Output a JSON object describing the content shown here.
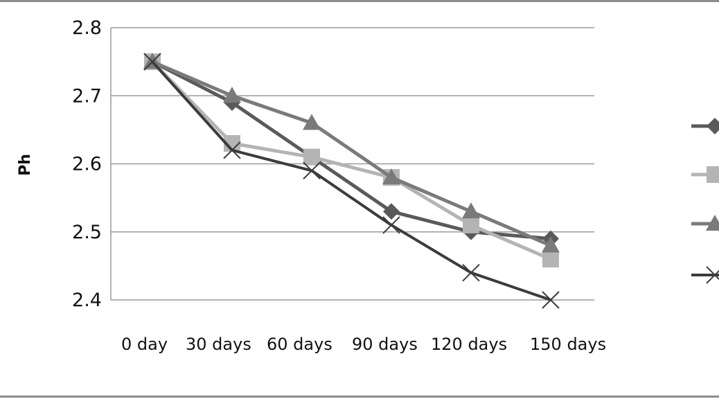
{
  "chart_data": {
    "type": "line",
    "title": "",
    "xlabel": "",
    "ylabel": "Ph",
    "categories": [
      "0 day",
      "30 days",
      "60 days",
      "90 days",
      "120 days",
      "150 days"
    ],
    "ylim": [
      2.4,
      2.8
    ],
    "yticks": [
      "2.8",
      "2.7",
      "2.6",
      "2.5",
      "2.4"
    ],
    "grid": true,
    "legend_position": "right",
    "series": [
      {
        "values": [
          2.75,
          2.69,
          2.61,
          2.53,
          2.5,
          2.49
        ],
        "marker": "diamond",
        "color": "#5a5a5a"
      },
      {
        "values": [
          2.75,
          2.63,
          2.61,
          2.58,
          2.51,
          2.46
        ],
        "marker": "square",
        "color": "#b4b4b4"
      },
      {
        "values": [
          2.75,
          2.7,
          2.66,
          2.58,
          2.53,
          2.48
        ],
        "marker": "triangle",
        "color": "#7a7a7a"
      },
      {
        "values": [
          2.75,
          2.62,
          2.59,
          2.51,
          2.44,
          2.4
        ],
        "marker": "x",
        "color": "#3c3c3c"
      }
    ]
  }
}
